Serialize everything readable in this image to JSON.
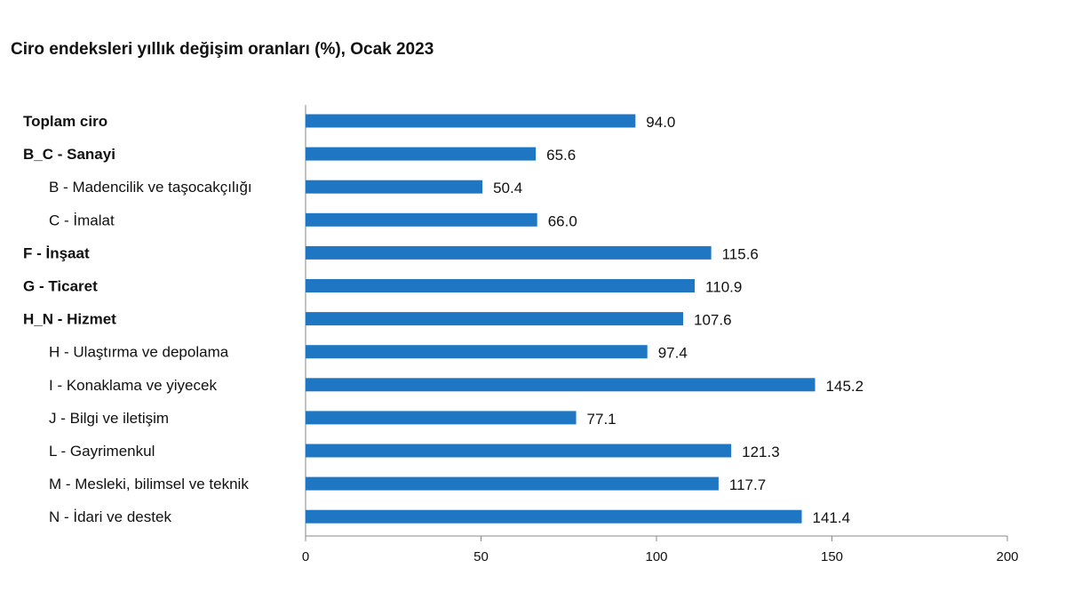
{
  "chart_data": {
    "type": "bar",
    "orientation": "horizontal",
    "title": "Ciro endeksleri yıllık değişim oranları (%), Ocak 2023",
    "xlabel": "",
    "ylabel": "",
    "xlim": [
      0,
      200
    ],
    "ticks": [
      "0",
      "50",
      "100",
      "150",
      "200"
    ],
    "tick_values": [
      0,
      50,
      100,
      150,
      200
    ],
    "grid": false,
    "legend": "none",
    "bar_color": "#1f77c4",
    "categories": [
      {
        "label": "Toplam ciro",
        "bold": true,
        "indent": 0
      },
      {
        "label": "B_C - Sanayi",
        "bold": true,
        "indent": 0
      },
      {
        "label": "B - Madencilik ve taşocakçılığı",
        "bold": false,
        "indent": 1
      },
      {
        "label": "C - İmalat",
        "bold": false,
        "indent": 1
      },
      {
        "label": "F - İnşaat",
        "bold": true,
        "indent": 0
      },
      {
        "label": "G - Ticaret",
        "bold": true,
        "indent": 0
      },
      {
        "label": "H_N - Hizmet",
        "bold": true,
        "indent": 0
      },
      {
        "label": "H - Ulaştırma ve depolama",
        "bold": false,
        "indent": 1
      },
      {
        "label": "I - Konaklama ve yiyecek",
        "bold": false,
        "indent": 1
      },
      {
        "label": "J - Bilgi ve iletişim",
        "bold": false,
        "indent": 1
      },
      {
        "label": "L - Gayrimenkul",
        "bold": false,
        "indent": 1
      },
      {
        "label": "M - Mesleki, bilimsel ve teknik",
        "bold": false,
        "indent": 1
      },
      {
        "label": "N - İdari ve destek",
        "bold": false,
        "indent": 1
      }
    ],
    "values": [
      94.0,
      65.6,
      50.4,
      66.0,
      115.6,
      110.9,
      107.6,
      97.4,
      145.2,
      77.1,
      121.3,
      117.7,
      141.4
    ],
    "value_labels": [
      "94.0",
      "65.6",
      "50.4",
      "66.0",
      "115.6",
      "110.9",
      "107.6",
      "97.4",
      "145.2",
      "77.1",
      "121.3",
      "117.7",
      "141.4"
    ]
  }
}
